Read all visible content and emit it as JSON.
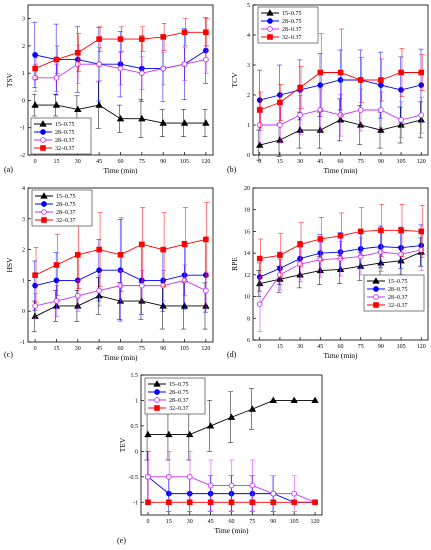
{
  "chart_data": [
    {
      "id": "a",
      "type": "line",
      "panel_label": "(a)",
      "xlabel": "Time (min)",
      "ylabel": "TSV",
      "x": [
        0,
        15,
        30,
        45,
        60,
        75,
        90,
        105,
        120
      ],
      "xlim": [
        -5,
        125
      ],
      "ylim": [
        -2,
        3.5
      ],
      "xticks": [
        0,
        15,
        30,
        45,
        60,
        75,
        90,
        105,
        120
      ],
      "yticks": [
        -2,
        -1,
        0,
        1,
        2,
        3
      ],
      "legend_position": "bottom-left",
      "series": [
        {
          "name": "15–0.75",
          "color": "#000000",
          "marker": "triangle",
          "filled": true,
          "values": [
            -0.17,
            -0.17,
            -0.33,
            -0.17,
            -0.67,
            -0.67,
            -0.83,
            -0.83,
            -0.83
          ],
          "err": [
            0.4,
            0.4,
            0.5,
            0.85,
            0.5,
            0.7,
            0.5,
            0.5,
            0.5
          ]
        },
        {
          "name": "28–0.75",
          "color": "#0000ff",
          "marker": "circle",
          "filled": true,
          "values": [
            1.67,
            1.5,
            1.5,
            1.33,
            1.33,
            1.17,
            1.17,
            1.33,
            1.83
          ],
          "err": [
            1.2,
            1.3,
            1.2,
            1.35,
            1.2,
            1.2,
            1.2,
            1.3,
            1.2
          ]
        },
        {
          "name": "28–0.37",
          "color": "#c832ff",
          "marker": "circle",
          "filled": false,
          "values": [
            0.83,
            0.83,
            1.33,
            1.33,
            1.17,
            1.0,
            1.17,
            1.33,
            1.5
          ],
          "err": [
            0.5,
            0.5,
            0.7,
            0.6,
            0.6,
            0.6,
            0.6,
            0.6,
            0.5
          ]
        },
        {
          "name": "32–0.37",
          "color": "#ff0000",
          "marker": "square",
          "filled": true,
          "values": [
            1.17,
            1.5,
            1.75,
            2.25,
            2.25,
            2.25,
            2.33,
            2.5,
            2.5
          ],
          "err": [
            0.4,
            0.5,
            0.7,
            0.45,
            0.45,
            0.45,
            0.5,
            0.5,
            0.5
          ]
        }
      ]
    },
    {
      "id": "b",
      "type": "line",
      "panel_label": "(b)",
      "xlabel": "Time (min)",
      "ylabel": "TCV",
      "x": [
        0,
        15,
        30,
        45,
        60,
        75,
        90,
        105,
        120
      ],
      "xlim": [
        -5,
        125
      ],
      "ylim": [
        0,
        5
      ],
      "xticks": [
        0,
        15,
        30,
        45,
        60,
        75,
        90,
        105,
        120
      ],
      "yticks": [
        0,
        1,
        2,
        3,
        4,
        5
      ],
      "legend_position": "top-left",
      "series": [
        {
          "name": "15–0.75",
          "color": "#000000",
          "marker": "triangle",
          "filled": true,
          "values": [
            0.33,
            0.5,
            0.83,
            0.83,
            1.17,
            1.0,
            0.83,
            1.0,
            1.17
          ],
          "err": [
            0.5,
            0.55,
            0.6,
            0.6,
            0.7,
            0.65,
            0.6,
            0.6,
            0.6
          ]
        },
        {
          "name": "28–0.75",
          "color": "#0000ff",
          "marker": "circle",
          "filled": true,
          "values": [
            1.83,
            2.0,
            2.17,
            2.33,
            2.5,
            2.5,
            2.33,
            2.17,
            2.33
          ],
          "err": [
            1.0,
            1.0,
            1.0,
            1.05,
            1.0,
            1.0,
            1.1,
            1.1,
            1.2
          ]
        },
        {
          "name": "28–0.37",
          "color": "#c832ff",
          "marker": "circle",
          "filled": false,
          "values": [
            1.0,
            1.0,
            1.33,
            1.5,
            1.33,
            1.5,
            1.5,
            1.17,
            1.33
          ],
          "err": [
            0.6,
            0.6,
            0.65,
            0.7,
            0.7,
            0.7,
            0.6,
            0.6,
            0.6
          ]
        },
        {
          "name": "32–0.37",
          "color": "#ff0000",
          "marker": "square",
          "filled": true,
          "values": [
            1.5,
            1.75,
            2.25,
            2.75,
            2.75,
            2.5,
            2.5,
            2.75,
            2.75
          ],
          "err": [
            0.6,
            0.6,
            0.7,
            1.3,
            1.45,
            0.75,
            0.7,
            0.8,
            0.6
          ]
        }
      ]
    },
    {
      "id": "c",
      "type": "line",
      "panel_label": "(c)",
      "xlabel": "Time (min)",
      "ylabel": "HSV",
      "x": [
        0,
        15,
        30,
        45,
        60,
        75,
        90,
        105,
        120
      ],
      "xlim": [
        -5,
        125
      ],
      "ylim": [
        -1,
        4
      ],
      "xticks": [
        0,
        15,
        30,
        45,
        60,
        75,
        90,
        105,
        120
      ],
      "yticks": [
        -1,
        0,
        1,
        2,
        3,
        4
      ],
      "legend_position": "top-left",
      "series": [
        {
          "name": "15–0.75",
          "color": "#000000",
          "marker": "triangle",
          "filled": true,
          "values": [
            -0.17,
            0.17,
            0.17,
            0.5,
            0.33,
            0.33,
            0.17,
            0.17,
            0.17
          ],
          "err": [
            0.5,
            0.5,
            0.5,
            0.6,
            0.6,
            0.6,
            0.75,
            0.75,
            0.75
          ]
        },
        {
          "name": "28–0.75",
          "color": "#0000ff",
          "marker": "circle",
          "filled": true,
          "values": [
            0.83,
            1.0,
            1.0,
            1.33,
            1.33,
            1.0,
            1.0,
            1.17,
            1.17
          ],
          "err": [
            0.8,
            0.9,
            0.9,
            1.0,
            1.65,
            1.1,
            1.0,
            1.1,
            1.2
          ]
        },
        {
          "name": "28–0.37",
          "color": "#c832ff",
          "marker": "circle",
          "filled": false,
          "values": [
            0.17,
            0.33,
            0.5,
            0.67,
            0.83,
            0.83,
            0.83,
            1.0,
            0.67
          ],
          "err": [
            0.4,
            0.5,
            0.5,
            0.5,
            0.5,
            0.5,
            0.5,
            0.5,
            0.6
          ]
        },
        {
          "name": "32–0.37",
          "color": "#ff0000",
          "marker": "square",
          "filled": true,
          "values": [
            1.17,
            1.5,
            1.83,
            2.0,
            1.83,
            2.17,
            2.0,
            2.17,
            2.33
          ],
          "err": [
            0.9,
            1.0,
            1.1,
            1.2,
            1.2,
            1.2,
            1.2,
            1.2,
            1.2
          ]
        }
      ]
    },
    {
      "id": "d",
      "type": "line",
      "panel_label": "(d)",
      "xlabel": "Time (min)",
      "ylabel": "RPE",
      "x": [
        0,
        15,
        30,
        45,
        60,
        75,
        90,
        105,
        120
      ],
      "xlim": [
        -5,
        125
      ],
      "ylim": [
        6,
        20
      ],
      "xticks": [
        0,
        15,
        30,
        45,
        60,
        75,
        90,
        105,
        120
      ],
      "yticks": [
        6,
        8,
        10,
        12,
        14,
        16,
        18,
        20
      ],
      "legend_position": "bottom-right",
      "series": [
        {
          "name": "15–0.75",
          "color": "#000000",
          "marker": "triangle",
          "filled": true,
          "values": [
            11.2,
            11.6,
            12.0,
            12.4,
            12.5,
            12.8,
            13.1,
            13.3,
            14.1
          ],
          "err": [
            1.2,
            1.2,
            1.2,
            1.3,
            1.3,
            1.3,
            1.3,
            1.3,
            1.3
          ]
        },
        {
          "name": "28–0.75",
          "color": "#0000ff",
          "marker": "circle",
          "filled": true,
          "values": [
            11.8,
            12.6,
            13.5,
            14.0,
            14.1,
            14.4,
            14.6,
            14.5,
            14.7
          ],
          "err": [
            1.3,
            1.5,
            1.6,
            1.7,
            1.8,
            1.8,
            1.9,
            1.9,
            1.9
          ]
        },
        {
          "name": "28–0.37",
          "color": "#c832ff",
          "marker": "circle",
          "filled": false,
          "values": [
            9.3,
            12.0,
            13.0,
            13.4,
            13.5,
            13.7,
            14.1,
            13.9,
            14.3
          ],
          "err": [
            2.5,
            1.4,
            1.6,
            1.6,
            1.6,
            1.7,
            1.8,
            1.9,
            1.9
          ]
        },
        {
          "name": "32–0.37",
          "color": "#ff0000",
          "marker": "square",
          "filled": true,
          "values": [
            13.5,
            13.8,
            14.8,
            15.3,
            15.6,
            16.0,
            16.1,
            16.1,
            16.0
          ],
          "err": [
            1.8,
            2.0,
            2.0,
            2.0,
            2.1,
            2.2,
            2.4,
            2.4,
            2.4
          ]
        }
      ]
    },
    {
      "id": "e",
      "type": "line",
      "panel_label": "(e)",
      "xlabel": "Time (min)",
      "ylabel": "TEV",
      "x": [
        0,
        15,
        30,
        45,
        60,
        75,
        90,
        105,
        120
      ],
      "xlim": [
        -5,
        125
      ],
      "ylim": [
        -1.25,
        1.5
      ],
      "xticks": [
        0,
        15,
        30,
        45,
        60,
        75,
        90,
        105,
        120
      ],
      "yticks": [
        -1.0,
        -0.5,
        0.0,
        0.5,
        1.0,
        1.5
      ],
      "legend_position": "top-left",
      "series": [
        {
          "name": "15–0.75",
          "color": "#000000",
          "marker": "triangle",
          "filled": true,
          "values": [
            0.33,
            0.33,
            0.33,
            0.5,
            0.67,
            0.83,
            1.0,
            1.0,
            1.0
          ],
          "err": [
            0.5,
            0.5,
            0.5,
            0.5,
            0.5,
            0.4,
            0.0,
            0.0,
            0.0
          ]
        },
        {
          "name": "28–0.75",
          "color": "#0000ff",
          "marker": "circle",
          "filled": true,
          "values": [
            -0.5,
            -0.83,
            -0.83,
            -0.83,
            -0.83,
            -0.83,
            -0.83,
            -1.0,
            -1.0
          ],
          "err": [
            0.5,
            0.35,
            0.35,
            0.35,
            0.35,
            0.35,
            0.35,
            0.0,
            0.0
          ]
        },
        {
          "name": "28–0.37",
          "color": "#c832ff",
          "marker": "circle",
          "filled": false,
          "values": [
            -0.5,
            -0.5,
            -0.5,
            -0.67,
            -0.67,
            -0.67,
            -0.83,
            -0.83,
            -1.0
          ],
          "err": [
            0.5,
            0.5,
            0.5,
            0.5,
            0.5,
            0.5,
            0.35,
            0.35,
            0.0
          ]
        },
        {
          "name": "32–0.37",
          "color": "#ff0000",
          "marker": "square",
          "filled": true,
          "values": [
            -1.0,
            -1.0,
            -1.0,
            -1.0,
            -1.0,
            -1.0,
            -1.0,
            -1.0,
            -1.0
          ],
          "err": [
            0,
            0,
            0,
            0,
            0,
            0,
            0,
            0,
            0
          ]
        }
      ]
    }
  ]
}
